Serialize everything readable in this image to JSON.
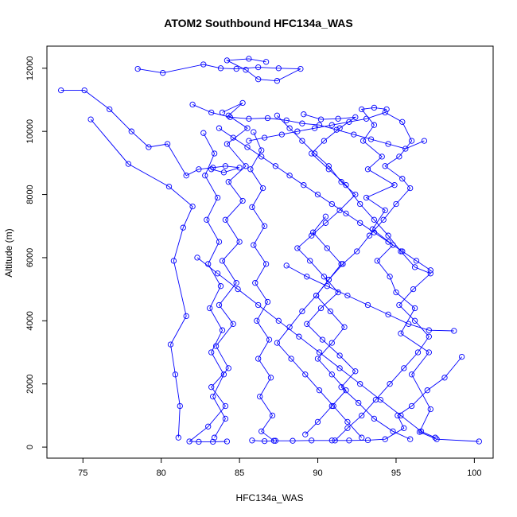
{
  "chart_data": {
    "type": "line",
    "title": "ATOM2 Southbound HFC134a_WAS",
    "xlabel": "HFC134a_WAS",
    "ylabel": "Altitude (m)",
    "xlim": [
      72.7,
      101.2
    ],
    "ylim": [
      -350,
      12700
    ],
    "xticks": [
      75,
      80,
      85,
      90,
      95,
      100
    ],
    "yticks": [
      0,
      2000,
      4000,
      6000,
      8000,
      10000,
      12000
    ],
    "grid": false,
    "legend": "none",
    "colors": {
      "series": "#0000ff",
      "axes": "#000000",
      "background": "#ffffff"
    },
    "markers": "open-circle",
    "series": [
      {
        "points": [
          [
            100.3,
            180
          ],
          [
            97.6,
            250
          ],
          [
            96.5,
            480
          ],
          [
            97.2,
            1200
          ],
          [
            96.0,
            2300
          ],
          [
            97.1,
            3000
          ],
          [
            95.3,
            3600
          ],
          [
            96.2,
            4400
          ],
          [
            95.0,
            4900
          ],
          [
            94.6,
            5400
          ],
          [
            93.8,
            5900
          ],
          [
            94.8,
            6400
          ],
          [
            93.5,
            6900
          ],
          [
            94.3,
            7500
          ],
          [
            93.1,
            7900
          ],
          [
            94.9,
            8300
          ],
          [
            93.2,
            8800
          ],
          [
            94.1,
            9200
          ],
          [
            92.9,
            9700
          ],
          [
            93.6,
            10200
          ],
          [
            92.8,
            10700
          ],
          [
            93.6,
            10750
          ],
          [
            94.4,
            10700
          ]
        ]
      },
      {
        "points": [
          [
            99.2,
            2860
          ],
          [
            98.1,
            2200
          ],
          [
            97.0,
            1800
          ],
          [
            96.0,
            1300
          ],
          [
            95.1,
            1000
          ],
          [
            95.5,
            600
          ],
          [
            94.3,
            250
          ],
          [
            93.2,
            220
          ],
          [
            92.0,
            210
          ],
          [
            90.9,
            210
          ],
          [
            89.6,
            210
          ],
          [
            88.4,
            200
          ],
          [
            87.3,
            200
          ],
          [
            86.6,
            190
          ],
          [
            85.8,
            210
          ]
        ]
      },
      {
        "points": [
          [
            84.2,
            180
          ],
          [
            83.3,
            170
          ],
          [
            82.4,
            170
          ],
          [
            81.8,
            180
          ],
          [
            83.0,
            650
          ],
          [
            84.1,
            1300
          ],
          [
            83.2,
            1900
          ],
          [
            84.3,
            2500
          ],
          [
            83.5,
            3200
          ],
          [
            84.6,
            3900
          ],
          [
            83.7,
            4500
          ],
          [
            84.8,
            5200
          ],
          [
            83.9,
            5900
          ],
          [
            85.0,
            6500
          ],
          [
            84.1,
            7200
          ],
          [
            85.2,
            7800
          ],
          [
            84.3,
            8400
          ],
          [
            85.4,
            8900
          ],
          [
            84.2,
            9600
          ],
          [
            85.5,
            10100
          ],
          [
            84.3,
            10500
          ],
          [
            85.2,
            10900
          ],
          [
            83.9,
            10600
          ]
        ]
      },
      {
        "points": [
          [
            73.6,
            11300
          ],
          [
            75.1,
            11300
          ],
          [
            76.7,
            10700
          ],
          [
            78.1,
            10000
          ],
          [
            79.2,
            9500
          ],
          [
            80.4,
            9600
          ],
          [
            81.6,
            8600
          ],
          [
            82.4,
            8800
          ],
          [
            83.3,
            8850
          ],
          [
            84.1,
            8900
          ],
          [
            85.0,
            8850
          ],
          [
            84.0,
            8700
          ],
          [
            83.2,
            8800
          ]
        ]
      },
      {
        "points": [
          [
            75.5,
            10380
          ],
          [
            77.9,
            8970
          ],
          [
            80.5,
            8250
          ],
          [
            82.0,
            7620
          ],
          [
            81.4,
            6950
          ],
          [
            80.8,
            5900
          ],
          [
            81.6,
            4150
          ],
          [
            80.6,
            3250
          ],
          [
            80.9,
            2300
          ],
          [
            81.2,
            1300
          ],
          [
            81.1,
            300
          ]
        ]
      },
      {
        "points": [
          [
            78.5,
            11980
          ],
          [
            80.1,
            11850
          ],
          [
            82.7,
            12120
          ],
          [
            83.8,
            12000
          ],
          [
            84.8,
            11980
          ],
          [
            86.2,
            12030
          ],
          [
            87.5,
            12000
          ],
          [
            88.9,
            11980
          ],
          [
            87.4,
            11600
          ],
          [
            86.2,
            11650
          ],
          [
            85.4,
            11950
          ],
          [
            84.2,
            12250
          ],
          [
            85.6,
            12300
          ],
          [
            86.7,
            12200
          ]
        ]
      },
      {
        "points": [
          [
            87.4,
            10500
          ],
          [
            88.2,
            10100
          ],
          [
            89.0,
            9700
          ],
          [
            89.8,
            9300
          ],
          [
            90.7,
            8900
          ],
          [
            91.5,
            8400
          ],
          [
            92.4,
            8000
          ],
          [
            91.4,
            7500
          ],
          [
            90.5,
            7100
          ],
          [
            89.6,
            6700
          ],
          [
            88.7,
            6300
          ],
          [
            89.5,
            5900
          ],
          [
            90.4,
            5400
          ],
          [
            91.3,
            4900
          ],
          [
            90.2,
            4400
          ],
          [
            89.3,
            3900
          ],
          [
            90.3,
            3400
          ],
          [
            91.4,
            2900
          ],
          [
            92.4,
            2400
          ],
          [
            91.5,
            1900
          ],
          [
            92.6,
            1400
          ],
          [
            93.6,
            900
          ],
          [
            94.8,
            500
          ],
          [
            95.9,
            250
          ]
        ]
      },
      {
        "points": [
          [
            85.9,
            9980
          ],
          [
            86.4,
            9400
          ],
          [
            85.7,
            8800
          ],
          [
            86.5,
            8200
          ],
          [
            85.8,
            7600
          ],
          [
            86.6,
            7000
          ],
          [
            85.9,
            6400
          ],
          [
            86.7,
            5800
          ],
          [
            86.0,
            5200
          ],
          [
            86.8,
            4600
          ],
          [
            86.1,
            4000
          ],
          [
            86.9,
            3400
          ],
          [
            86.2,
            2800
          ],
          [
            87.0,
            2200
          ],
          [
            86.3,
            1600
          ],
          [
            87.1,
            1000
          ],
          [
            86.4,
            500
          ],
          [
            87.2,
            200
          ]
        ]
      },
      {
        "points": [
          [
            89.1,
            10540
          ],
          [
            90.2,
            10380
          ],
          [
            91.3,
            10400
          ],
          [
            92.4,
            10450
          ],
          [
            91.4,
            10100
          ],
          [
            90.4,
            9700
          ],
          [
            89.6,
            9300
          ],
          [
            90.7,
            8800
          ],
          [
            91.8,
            8300
          ],
          [
            92.7,
            7700
          ],
          [
            93.6,
            7200
          ],
          [
            94.5,
            6700
          ],
          [
            95.3,
            6200
          ],
          [
            96.2,
            5700
          ],
          [
            97.2,
            5500
          ],
          [
            96.1,
            5000
          ],
          [
            95.2,
            4500
          ],
          [
            96.2,
            4000
          ],
          [
            97.1,
            3500
          ],
          [
            96.4,
            3000
          ],
          [
            95.5,
            2500
          ],
          [
            94.6,
            2000
          ],
          [
            93.7,
            1500
          ],
          [
            92.8,
            1000
          ],
          [
            91.9,
            600
          ],
          [
            91.1,
            210
          ]
        ]
      },
      {
        "points": [
          [
            88.0,
            5750
          ],
          [
            89.3,
            5400
          ],
          [
            90.6,
            5100
          ],
          [
            91.9,
            4800
          ],
          [
            93.2,
            4500
          ],
          [
            94.5,
            4200
          ],
          [
            95.8,
            3900
          ],
          [
            97.1,
            3700
          ],
          [
            98.7,
            3680
          ]
        ]
      },
      {
        "points": [
          [
            85.6,
            9700
          ],
          [
            86.6,
            9800
          ],
          [
            87.7,
            9900
          ],
          [
            88.7,
            10000
          ],
          [
            89.8,
            10100
          ],
          [
            90.9,
            10200
          ],
          [
            92.0,
            10300
          ],
          [
            93.1,
            10400
          ],
          [
            94.3,
            10600
          ],
          [
            95.4,
            10300
          ],
          [
            96.0,
            9700
          ],
          [
            95.2,
            9200
          ],
          [
            94.3,
            8900
          ],
          [
            95.4,
            8500
          ],
          [
            95.9,
            8200
          ],
          [
            95.0,
            7700
          ],
          [
            94.2,
            7200
          ],
          [
            93.3,
            6700
          ],
          [
            92.5,
            6200
          ],
          [
            91.6,
            5800
          ],
          [
            90.7,
            5300
          ],
          [
            89.9,
            4800
          ],
          [
            89.0,
            4300
          ],
          [
            88.2,
            3800
          ],
          [
            87.4,
            3300
          ],
          [
            88.3,
            2800
          ],
          [
            89.2,
            2300
          ],
          [
            90.1,
            1800
          ],
          [
            91.0,
            1300
          ],
          [
            91.9,
            800
          ],
          [
            92.8,
            300
          ]
        ]
      },
      {
        "points": [
          [
            82.7,
            9950
          ],
          [
            83.4,
            9300
          ],
          [
            82.8,
            8600
          ],
          [
            83.6,
            7900
          ],
          [
            82.9,
            7200
          ],
          [
            83.7,
            6500
          ],
          [
            83.0,
            5800
          ],
          [
            83.8,
            5100
          ],
          [
            83.1,
            4400
          ],
          [
            83.9,
            3700
          ],
          [
            83.2,
            3000
          ],
          [
            84.0,
            2300
          ],
          [
            83.3,
            1600
          ],
          [
            84.1,
            900
          ],
          [
            83.4,
            300
          ]
        ]
      },
      {
        "points": [
          [
            82.0,
            10850
          ],
          [
            83.2,
            10600
          ],
          [
            84.4,
            10450
          ],
          [
            85.6,
            10400
          ],
          [
            86.8,
            10420
          ],
          [
            88.0,
            10350
          ],
          [
            89.0,
            10250
          ],
          [
            90.1,
            10200
          ],
          [
            91.2,
            10050
          ],
          [
            92.3,
            9900
          ],
          [
            93.4,
            9750
          ],
          [
            94.5,
            9600
          ],
          [
            95.6,
            9450
          ],
          [
            96.8,
            9700
          ]
        ]
      },
      {
        "points": [
          [
            82.3,
            6000
          ],
          [
            83.6,
            5500
          ],
          [
            84.9,
            5000
          ],
          [
            86.2,
            4500
          ],
          [
            87.5,
            4000
          ],
          [
            88.8,
            3500
          ],
          [
            90.1,
            3000
          ],
          [
            91.4,
            2500
          ],
          [
            92.7,
            2000
          ],
          [
            94.0,
            1500
          ],
          [
            95.3,
            1000
          ],
          [
            96.6,
            500
          ],
          [
            97.5,
            300
          ]
        ]
      },
      {
        "points": [
          [
            90.5,
            7300
          ],
          [
            89.7,
            6800
          ],
          [
            90.6,
            6300
          ],
          [
            91.5,
            5800
          ],
          [
            90.7,
            5300
          ],
          [
            89.9,
            4800
          ],
          [
            90.8,
            4300
          ],
          [
            91.7,
            3800
          ],
          [
            90.9,
            3300
          ],
          [
            90.0,
            2800
          ],
          [
            90.9,
            2300
          ],
          [
            91.8,
            1800
          ],
          [
            90.9,
            1300
          ],
          [
            90.0,
            800
          ],
          [
            89.2,
            400
          ]
        ]
      },
      {
        "points": [
          [
            97.2,
            5600
          ],
          [
            96.3,
            5900
          ],
          [
            95.4,
            6200
          ],
          [
            94.5,
            6500
          ],
          [
            93.6,
            6800
          ],
          [
            92.7,
            7100
          ],
          [
            91.8,
            7400
          ],
          [
            90.9,
            7700
          ],
          [
            90.0,
            8000
          ],
          [
            89.1,
            8300
          ],
          [
            88.2,
            8600
          ],
          [
            87.3,
            8900
          ],
          [
            86.4,
            9200
          ],
          [
            85.5,
            9500
          ],
          [
            84.6,
            9800
          ],
          [
            83.7,
            10100
          ]
        ]
      }
    ]
  }
}
